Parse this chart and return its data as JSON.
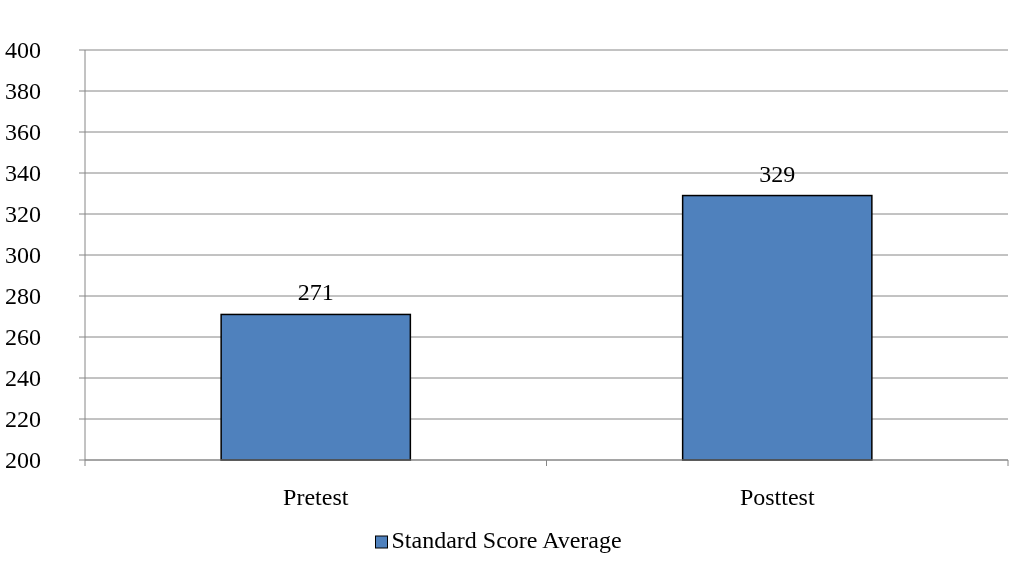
{
  "chart_data": {
    "type": "bar",
    "categories": [
      "Pretest",
      "Posttest"
    ],
    "series": [
      {
        "name": "Standard Score Average",
        "color": "#4f81bd",
        "values": [
          271,
          329
        ]
      }
    ],
    "ylim": [
      200,
      400
    ],
    "yticks": [
      200,
      220,
      240,
      260,
      280,
      300,
      320,
      340,
      360,
      380,
      400
    ],
    "grid": "y",
    "legend": "bottom",
    "data_labels": true
  }
}
